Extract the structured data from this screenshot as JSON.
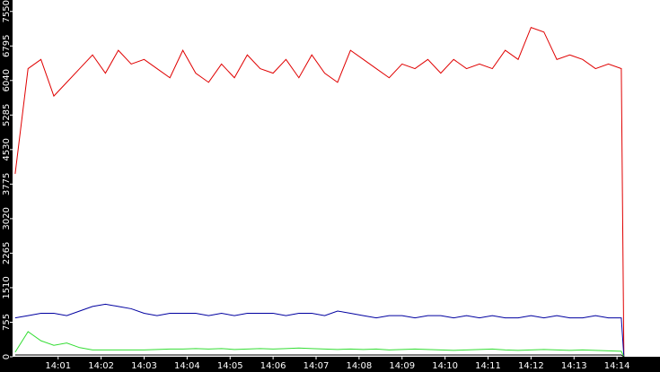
{
  "chart_data": {
    "type": "line",
    "x": [
      0,
      0.3,
      0.6,
      0.9,
      1.2,
      1.5,
      1.8,
      2.1,
      2.4,
      2.7,
      3,
      3.3,
      3.6,
      3.9,
      4.2,
      4.5,
      4.8,
      5.1,
      5.4,
      5.7,
      6,
      6.3,
      6.6,
      6.9,
      7.2,
      7.5,
      7.8,
      8.1,
      8.4,
      8.7,
      9,
      9.3,
      9.6,
      9.9,
      10.2,
      10.5,
      10.8,
      11.1,
      11.4,
      11.7,
      12,
      12.3,
      12.6,
      12.9,
      13.2,
      13.5,
      13.8,
      14.1,
      14.16
    ],
    "xlim": [
      -0.06,
      15.0
    ],
    "xticks": [
      {
        "value": 1,
        "label": "14:01"
      },
      {
        "value": 2,
        "label": "14:02"
      },
      {
        "value": 3,
        "label": "14:03"
      },
      {
        "value": 4,
        "label": "14:04"
      },
      {
        "value": 5,
        "label": "14:05"
      },
      {
        "value": 6,
        "label": "14:06"
      },
      {
        "value": 7,
        "label": "14:07"
      },
      {
        "value": 8,
        "label": "14:08"
      },
      {
        "value": 9,
        "label": "14:09"
      },
      {
        "value": 10,
        "label": "14:10"
      },
      {
        "value": 11,
        "label": "14:11"
      },
      {
        "value": 12,
        "label": "14:12"
      },
      {
        "value": 13,
        "label": "14:13"
      },
      {
        "value": 14,
        "label": "14:14"
      }
    ],
    "ylim": [
      0,
      7800
    ],
    "yticks": [
      0,
      755,
      1510,
      2265,
      3020,
      3775,
      4530,
      5285,
      6040,
      6795,
      7550
    ],
    "grid": false,
    "series": [
      {
        "color": "#e00000",
        "values": [
          4000,
          6300,
          6500,
          5700,
          6000,
          6300,
          6600,
          6200,
          6700,
          6400,
          6500,
          6300,
          6100,
          6700,
          6200,
          6000,
          6400,
          6100,
          6600,
          6300,
          6200,
          6500,
          6100,
          6600,
          6200,
          6000,
          6700,
          6500,
          6300,
          6100,
          6400,
          6300,
          6500,
          6200,
          6500,
          6300,
          6400,
          6300,
          6700,
          6500,
          7200,
          7100,
          6500,
          6600,
          6500,
          6300,
          6400,
          6300,
          0
        ]
      },
      {
        "color": "#0000a0",
        "values": [
          850,
          900,
          950,
          950,
          900,
          1000,
          1100,
          1150,
          1100,
          1050,
          950,
          900,
          950,
          950,
          950,
          900,
          950,
          900,
          950,
          950,
          950,
          900,
          950,
          950,
          900,
          1000,
          950,
          900,
          850,
          900,
          900,
          850,
          900,
          900,
          850,
          900,
          850,
          900,
          850,
          850,
          900,
          850,
          900,
          850,
          850,
          900,
          850,
          850,
          0
        ]
      },
      {
        "color": "#33dd33",
        "values": [
          100,
          550,
          350,
          250,
          300,
          200,
          150,
          150,
          150,
          150,
          150,
          160,
          170,
          170,
          180,
          170,
          180,
          160,
          170,
          180,
          170,
          180,
          190,
          180,
          170,
          160,
          170,
          160,
          170,
          150,
          160,
          170,
          160,
          150,
          140,
          150,
          160,
          170,
          150,
          140,
          150,
          160,
          150,
          140,
          150,
          140,
          130,
          120,
          0
        ]
      },
      {
        "color": "#000000",
        "values": [
          40,
          40,
          40,
          40,
          40,
          40,
          40,
          40,
          40,
          40,
          40,
          40,
          40,
          40,
          40,
          40,
          40,
          40,
          40,
          40,
          40,
          40,
          40,
          40,
          40,
          40,
          40,
          40,
          40,
          40,
          40,
          40,
          40,
          40,
          40,
          40,
          40,
          40,
          40,
          40,
          40,
          40,
          40,
          40,
          40,
          40,
          40,
          40,
          0
        ]
      }
    ]
  }
}
